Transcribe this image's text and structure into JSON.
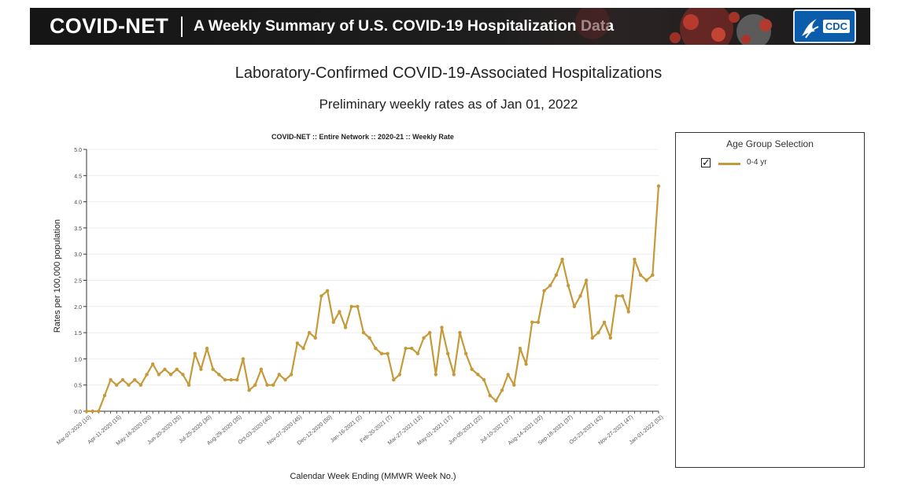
{
  "banner": {
    "brand": "COVID-NET",
    "subtitle": "A Weekly Summary of U.S. COVID-19 Hospitalization Data",
    "logo_text": "CDC"
  },
  "page": {
    "title": "Laboratory-Confirmed COVID-19-Associated Hospitalizations",
    "subtitle": "Preliminary weekly rates as of Jan 01, 2022"
  },
  "legend": {
    "title": "Age Group Selection",
    "items": [
      {
        "label": "0-4 yr",
        "checked": true,
        "color": "#c59a3a"
      }
    ]
  },
  "chart_data": {
    "type": "line",
    "title": "COVID-NET :: Entire Network :: 2020-21 :: Weekly Rate",
    "xlabel": "Calendar Week Ending (MMWR Week No.)",
    "ylabel": "Rates per 100,000 population",
    "ylim": [
      0,
      5.0
    ],
    "yticks": [
      "0.0",
      "0.5",
      "1.0",
      "1.5",
      "2.0",
      "2.5",
      "3.0",
      "3.5",
      "4.0",
      "4.5",
      "5.0"
    ],
    "xtick_labels": [
      "Mar-07-2020 (10)",
      "Apr-11-2020 (15)",
      "May-16-2020 (20)",
      "Jun-20-2020 (25)",
      "Jul-25-2020 (30)",
      "Aug-29-2020 (35)",
      "Oct-03-2020 (40)",
      "Nov-07-2020 (45)",
      "Dec-12-2020 (50)",
      "Jan-16-2021 (2)",
      "Feb-20-2021 (7)",
      "Mar-27-2021 (12)",
      "May-01-2021 (17)",
      "Jun-05-2021 (22)",
      "Jul-10-2021 (27)",
      "Aug-14-2021 (32)",
      "Sep-18-2021 (37)",
      "Oct-23-2021 (42)",
      "Nov-27-2021 (47)",
      "Jan-01-2022 (52)"
    ],
    "grid": true,
    "series": [
      {
        "name": "0-4 yr",
        "color": "#c59a3a",
        "values": [
          0.0,
          0.0,
          0.0,
          0.3,
          0.6,
          0.5,
          0.6,
          0.5,
          0.6,
          0.5,
          0.7,
          0.9,
          0.7,
          0.8,
          0.7,
          0.8,
          0.7,
          0.5,
          1.1,
          0.8,
          1.2,
          0.8,
          0.7,
          0.6,
          0.6,
          0.6,
          1.0,
          0.4,
          0.5,
          0.8,
          0.5,
          0.5,
          0.7,
          0.6,
          0.7,
          1.3,
          1.2,
          1.5,
          1.4,
          2.2,
          2.3,
          1.7,
          1.9,
          1.6,
          2.0,
          2.0,
          1.5,
          1.4,
          1.2,
          1.1,
          1.1,
          0.6,
          0.7,
          1.2,
          1.2,
          1.1,
          1.4,
          1.5,
          0.7,
          1.6,
          1.1,
          0.7,
          1.5,
          1.1,
          0.8,
          0.7,
          0.6,
          0.3,
          0.2,
          0.4,
          0.7,
          0.5,
          1.2,
          0.9,
          1.7,
          1.7,
          2.3,
          2.4,
          2.6,
          2.9,
          2.4,
          2.0,
          2.2,
          2.5,
          1.4,
          1.5,
          1.7,
          1.4,
          2.2,
          2.2,
          1.9,
          2.9,
          2.6,
          2.5,
          2.6,
          4.3
        ]
      }
    ]
  }
}
